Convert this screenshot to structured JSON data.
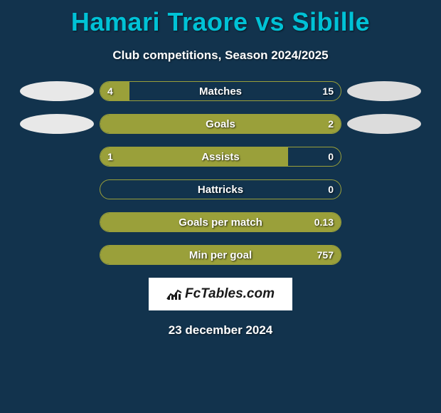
{
  "title": "Hamari Traore vs Sibille",
  "subtitle": "Club competitions, Season 2024/2025",
  "date": "23 december 2024",
  "logo_text": "FcTables.com",
  "colors": {
    "background": "#12334d",
    "accent": "#00c2d6",
    "bar_fill": "#9aa03a",
    "bar_border": "#9aa03a",
    "ellipse_left": "#e8e8e8",
    "ellipse_right": "#dcdcdc",
    "text": "#ffffff"
  },
  "rows": [
    {
      "label": "Matches",
      "left_value": "4",
      "right_value": "15",
      "left_pct": 12,
      "right_pct": 0,
      "show_left_ellipse": true,
      "show_right_ellipse": true
    },
    {
      "label": "Goals",
      "left_value": "",
      "right_value": "2",
      "left_pct": 100,
      "right_pct": 0,
      "show_left_ellipse": true,
      "show_right_ellipse": true
    },
    {
      "label": "Assists",
      "left_value": "1",
      "right_value": "0",
      "left_pct": 78,
      "right_pct": 0,
      "show_left_ellipse": false,
      "show_right_ellipse": false
    },
    {
      "label": "Hattricks",
      "left_value": "",
      "right_value": "0",
      "left_pct": 0,
      "right_pct": 0,
      "show_left_ellipse": false,
      "show_right_ellipse": false
    },
    {
      "label": "Goals per match",
      "left_value": "",
      "right_value": "0.13",
      "left_pct": 100,
      "right_pct": 0,
      "show_left_ellipse": false,
      "show_right_ellipse": false
    },
    {
      "label": "Min per goal",
      "left_value": "",
      "right_value": "757",
      "left_pct": 100,
      "right_pct": 0,
      "show_left_ellipse": false,
      "show_right_ellipse": false
    }
  ],
  "typography": {
    "title_fontsize": 36,
    "subtitle_fontsize": 17,
    "row_label_fontsize": 15,
    "value_fontsize": 14,
    "date_fontsize": 17
  }
}
